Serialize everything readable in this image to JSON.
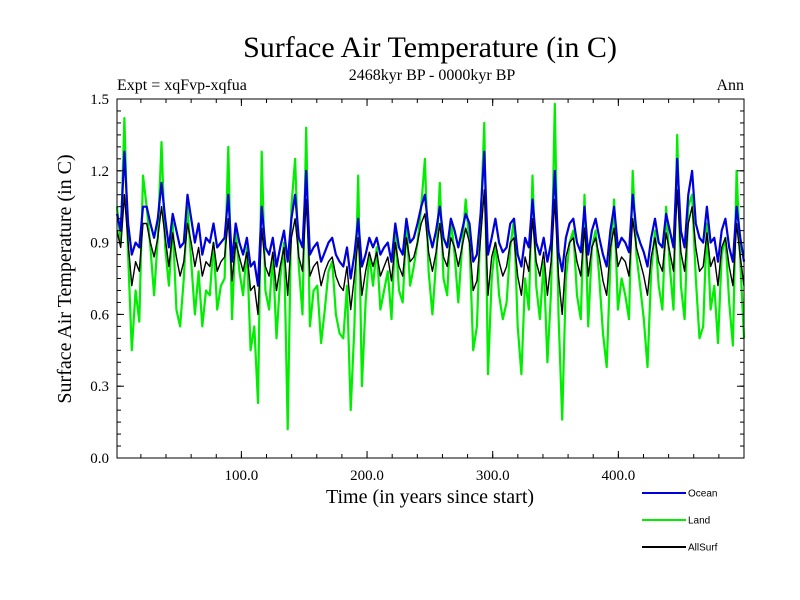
{
  "chart_data": {
    "type": "line",
    "title": "Surface Air Temperature (in C)",
    "subtitle": "2468kyr BP - 0000kyr BP",
    "left_label": "Expt = xqFvp-xqfua",
    "right_label": "Ann",
    "xlabel": "Time (in years since start)",
    "ylabel": "Surface Air Temperature (in C)",
    "xlim": [
      1,
      500
    ],
    "ylim": [
      0.0,
      1.5
    ],
    "x_ticks": [
      100,
      200,
      300,
      400
    ],
    "x_tick_labels": [
      "100.0",
      "200.0",
      "300.0",
      "400.0"
    ],
    "y_ticks": [
      0.0,
      0.3,
      0.6,
      0.9,
      1.2,
      1.5
    ],
    "y_tick_labels": [
      "0.0",
      "0.3",
      "0.6",
      "0.9",
      "1.2",
      "1.5"
    ],
    "grid": false,
    "legend_position": "bottom-right, outside plot",
    "series": [
      {
        "name": "Land",
        "color": "#00ee00",
        "values": [
          1.05,
          0.9,
          1.42,
          0.85,
          0.45,
          0.7,
          0.57,
          1.18,
          1.05,
          0.88,
          0.68,
          0.92,
          1.32,
          0.88,
          0.72,
          0.98,
          0.62,
          0.55,
          0.75,
          1.05,
          0.82,
          0.6,
          0.78,
          0.55,
          0.7,
          0.68,
          0.9,
          0.62,
          0.72,
          0.75,
          1.3,
          0.58,
          0.95,
          0.78,
          0.68,
          0.88,
          0.45,
          0.55,
          0.23,
          1.28,
          0.7,
          0.62,
          0.85,
          0.5,
          0.75,
          0.9,
          0.12,
          1.05,
          1.25,
          0.8,
          0.6,
          1.38,
          0.55,
          0.7,
          0.72,
          0.48,
          0.62,
          0.78,
          0.82,
          0.6,
          0.52,
          0.5,
          0.72,
          0.2,
          0.55,
          1.18,
          0.3,
          0.65,
          0.85,
          0.72,
          0.88,
          0.62,
          0.7,
          0.78,
          0.58,
          0.95,
          0.7,
          0.65,
          0.98,
          0.72,
          0.8,
          0.9,
          1.05,
          1.25,
          0.78,
          0.6,
          0.82,
          1.15,
          0.75,
          0.68,
          1.0,
          0.85,
          0.65,
          0.88,
          1.08,
          0.9,
          0.45,
          0.55,
          0.98,
          1.4,
          0.35,
          0.75,
          0.9,
          0.68,
          0.58,
          0.65,
          0.88,
          1.0,
          0.55,
          0.35,
          0.75,
          0.62,
          1.18,
          0.72,
          0.58,
          0.82,
          0.4,
          0.7,
          1.48,
          0.6,
          0.16,
          0.75,
          0.9,
          0.95,
          0.68,
          0.58,
          1.1,
          0.55,
          0.88,
          0.95,
          0.75,
          0.52,
          0.38,
          0.82,
          1.08,
          0.62,
          0.75,
          0.68,
          0.58,
          1.2,
          0.85,
          0.72,
          0.58,
          0.38,
          0.78,
          0.95,
          0.72,
          0.62,
          1.05,
          0.8,
          0.62,
          1.35,
          0.72,
          0.58,
          1.05,
          1.1,
          0.75,
          0.5,
          0.55,
          0.98,
          0.62,
          0.72,
          0.48,
          0.85,
          0.92,
          0.65,
          0.47,
          1.2,
          0.82,
          0.5
        ]
      },
      {
        "name": "Ocean",
        "color": "#0000dd",
        "values": [
          1.02,
          0.95,
          1.28,
          0.98,
          0.85,
          0.9,
          0.88,
          1.05,
          1.05,
          0.98,
          0.92,
          1.0,
          1.15,
          1.0,
          0.88,
          1.02,
          0.95,
          0.88,
          0.9,
          1.1,
          1.0,
          0.9,
          0.98,
          0.85,
          0.92,
          0.9,
          0.98,
          0.88,
          0.9,
          0.92,
          1.1,
          0.82,
          0.98,
          0.9,
          0.85,
          0.92,
          0.8,
          0.82,
          0.72,
          1.05,
          0.88,
          0.85,
          0.92,
          0.8,
          0.88,
          0.95,
          0.82,
          1.0,
          1.1,
          0.92,
          0.88,
          1.2,
          0.85,
          0.88,
          0.9,
          0.82,
          0.86,
          0.9,
          0.92,
          0.85,
          0.82,
          0.8,
          0.88,
          0.75,
          0.85,
          1.0,
          0.8,
          0.85,
          0.92,
          0.88,
          0.92,
          0.85,
          0.88,
          0.9,
          0.82,
          0.98,
          0.88,
          0.85,
          1.0,
          0.9,
          0.92,
          0.98,
          1.05,
          1.1,
          0.95,
          0.88,
          0.95,
          1.05,
          0.92,
          0.88,
          1.0,
          0.95,
          0.88,
          0.95,
          1.02,
          0.98,
          0.82,
          0.85,
          1.02,
          1.28,
          0.85,
          0.92,
          1.0,
          0.9,
          0.86,
          0.88,
          0.98,
          1.0,
          0.85,
          0.8,
          0.92,
          0.88,
          1.08,
          0.9,
          0.85,
          0.92,
          0.82,
          0.9,
          1.2,
          0.86,
          0.78,
          0.92,
          0.98,
          1.0,
          0.9,
          0.86,
          1.05,
          0.85,
          0.95,
          1.0,
          0.92,
          0.85,
          0.8,
          0.95,
          1.05,
          0.88,
          0.92,
          0.9,
          0.86,
          1.1,
          0.95,
          0.9,
          0.86,
          0.8,
          0.92,
          1.0,
          0.9,
          0.88,
          1.02,
          0.95,
          0.88,
          1.25,
          0.95,
          0.88,
          1.1,
          1.2,
          0.98,
          0.92,
          0.9,
          1.05,
          0.9,
          0.92,
          0.82,
          0.95,
          1.0,
          0.88,
          0.82,
          1.05,
          0.92,
          0.82
        ]
      },
      {
        "name": "AllSurf",
        "color": "#000000",
        "values": [
          0.95,
          0.88,
          1.1,
          0.9,
          0.72,
          0.82,
          0.78,
          0.98,
          0.98,
          0.9,
          0.84,
          0.92,
          1.05,
          0.92,
          0.8,
          0.94,
          0.84,
          0.76,
          0.82,
          0.98,
          0.9,
          0.8,
          0.88,
          0.76,
          0.82,
          0.8,
          0.9,
          0.78,
          0.82,
          0.84,
          1.0,
          0.74,
          0.9,
          0.84,
          0.78,
          0.86,
          0.7,
          0.72,
          0.6,
          0.96,
          0.8,
          0.76,
          0.86,
          0.7,
          0.8,
          0.88,
          0.68,
          0.92,
          1.0,
          0.84,
          0.78,
          1.08,
          0.76,
          0.8,
          0.82,
          0.72,
          0.78,
          0.82,
          0.84,
          0.76,
          0.72,
          0.7,
          0.8,
          0.62,
          0.76,
          0.92,
          0.68,
          0.78,
          0.86,
          0.8,
          0.86,
          0.76,
          0.8,
          0.84,
          0.74,
          0.9,
          0.8,
          0.76,
          0.92,
          0.82,
          0.84,
          0.9,
          0.98,
          1.02,
          0.86,
          0.78,
          0.86,
          0.98,
          0.84,
          0.8,
          0.92,
          0.88,
          0.8,
          0.88,
          0.96,
          0.9,
          0.7,
          0.74,
          0.92,
          1.12,
          0.68,
          0.84,
          0.9,
          0.82,
          0.76,
          0.8,
          0.9,
          0.92,
          0.76,
          0.68,
          0.84,
          0.78,
          1.0,
          0.82,
          0.76,
          0.86,
          0.68,
          0.82,
          1.08,
          0.76,
          0.6,
          0.84,
          0.9,
          0.92,
          0.82,
          0.76,
          0.96,
          0.76,
          0.88,
          0.92,
          0.84,
          0.74,
          0.68,
          0.88,
          0.96,
          0.8,
          0.84,
          0.82,
          0.76,
          1.0,
          0.88,
          0.82,
          0.76,
          0.68,
          0.84,
          0.92,
          0.82,
          0.78,
          0.94,
          0.86,
          0.78,
          1.12,
          0.86,
          0.78,
          0.98,
          1.05,
          0.88,
          0.78,
          0.8,
          0.94,
          0.8,
          0.84,
          0.72,
          0.88,
          0.92,
          0.8,
          0.72,
          0.98,
          0.84,
          0.72
        ]
      }
    ]
  }
}
